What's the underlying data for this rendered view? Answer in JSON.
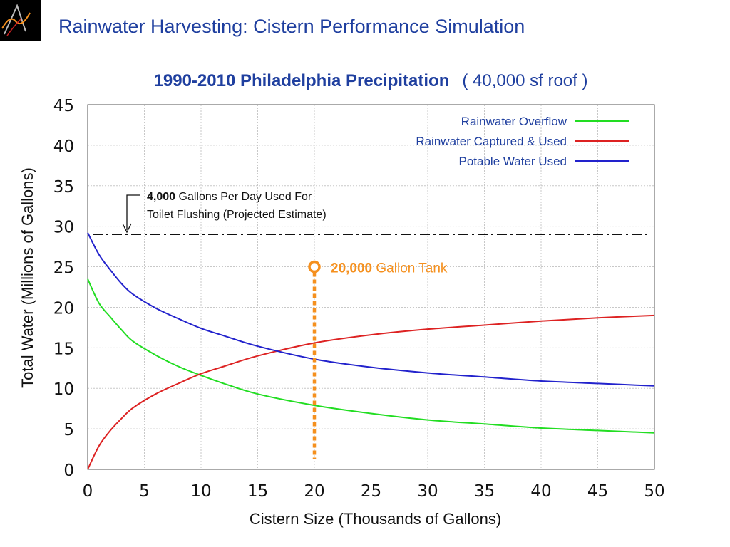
{
  "header": {
    "title": "Rainwater Harvesting: Cistern Performance Simulation"
  },
  "chart_data": {
    "type": "line",
    "title": "1990-2010  Philadelphia Precipitation",
    "subtitle": "( 40,000 sf roof )",
    "xlabel": "Cistern Size (Thousands of Gallons)",
    "ylabel": "Total Water (Millions of Gallons)",
    "xlim": [
      0,
      50
    ],
    "ylim": [
      0,
      45
    ],
    "xticks": [
      "0",
      "5",
      "10",
      "15",
      "20",
      "25",
      "30",
      "35",
      "40",
      "45",
      "50"
    ],
    "yticks": [
      "0",
      "5",
      "10",
      "15",
      "20",
      "25",
      "30",
      "35",
      "40",
      "45"
    ],
    "grid": true,
    "legend_position": "top-right",
    "series": [
      {
        "name": "Rainwater Overflow",
        "color": "#22dd22",
        "x": [
          0,
          1,
          2,
          3,
          4,
          6,
          8,
          10,
          12,
          15,
          20,
          25,
          30,
          35,
          40,
          45,
          50
        ],
        "y": [
          23.5,
          20.5,
          18.8,
          17.2,
          15.8,
          14.1,
          12.7,
          11.6,
          10.6,
          9.3,
          7.9,
          6.9,
          6.1,
          5.6,
          5.1,
          4.8,
          4.5
        ]
      },
      {
        "name": "Rainwater Captured & Used",
        "color": "#dd2222",
        "x": [
          0,
          1,
          2,
          3,
          4,
          6,
          8,
          10,
          12,
          15,
          20,
          25,
          30,
          35,
          40,
          45,
          50
        ],
        "y": [
          0,
          2.9,
          4.8,
          6.3,
          7.6,
          9.3,
          10.6,
          11.8,
          12.7,
          14.0,
          15.6,
          16.6,
          17.3,
          17.8,
          18.3,
          18.7,
          19.0
        ]
      },
      {
        "name": "Potable Water Used",
        "color": "#2222cc",
        "x": [
          0,
          1,
          2,
          3,
          4,
          6,
          8,
          10,
          12,
          15,
          20,
          25,
          30,
          35,
          40,
          45,
          50
        ],
        "y": [
          29.2,
          26.5,
          24.6,
          22.9,
          21.6,
          19.9,
          18.6,
          17.4,
          16.5,
          15.2,
          13.6,
          12.6,
          11.9,
          11.4,
          10.9,
          10.6,
          10.3
        ]
      }
    ],
    "reference_line": {
      "y": 29,
      "label_bold": "4,000",
      "label_line1": " Gallons Per Day Used For",
      "label_line2": "Toilet Flushing (Projected Estimate)"
    },
    "tank_marker": {
      "x": 20,
      "y": 25,
      "color": "#f5901e",
      "label_bold": "20,000",
      "label_rest": " Gallon Tank"
    }
  }
}
